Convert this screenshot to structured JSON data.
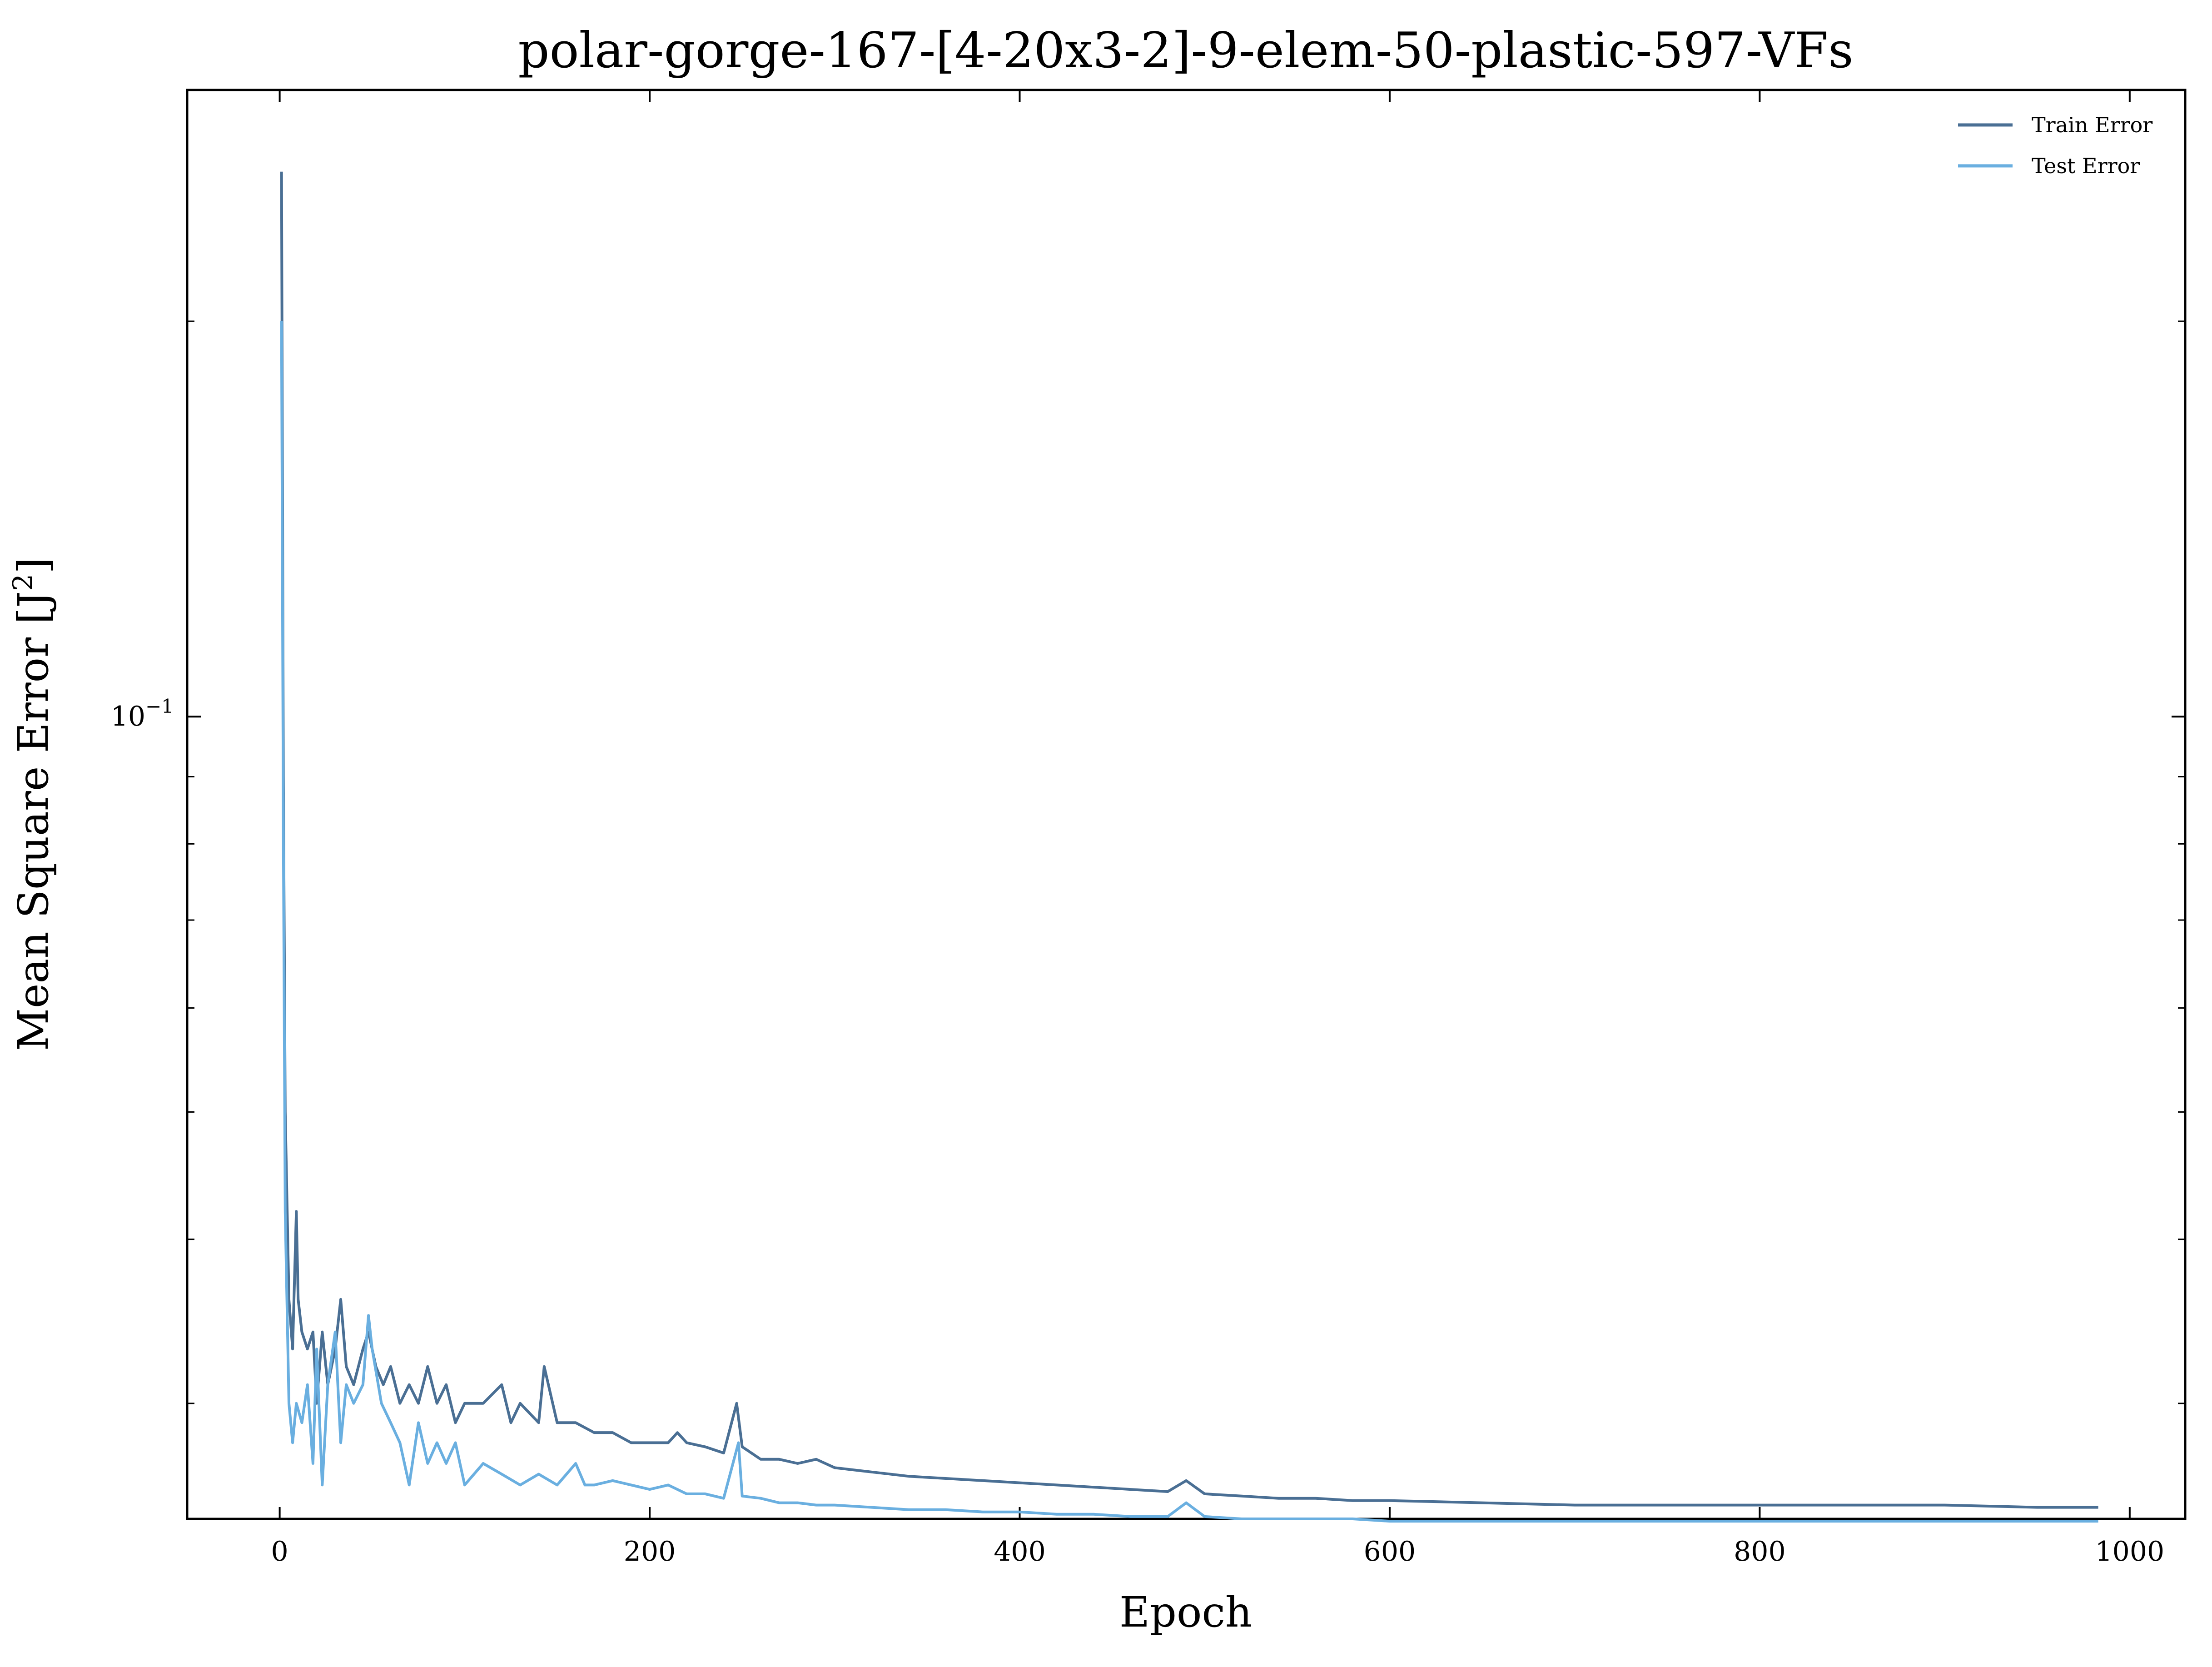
{
  "chart_data": {
    "type": "line",
    "title": "polar-gorge-167-[4-20x3-2]-9-elem-50-plastic-597-VFs",
    "xlabel": "Epoch",
    "ylabel_prefix": "Mean Square Error [J",
    "ylabel_sup": "2",
    "ylabel_suffix": "]",
    "yscale": "log",
    "xlim": [
      -50,
      1030
    ],
    "ylim": [
      0.0245,
      0.3
    ],
    "x_ticks": [
      0,
      200,
      400,
      600,
      800,
      1000
    ],
    "x_tick_labels": [
      "0",
      "200",
      "400",
      "600",
      "800",
      "1000"
    ],
    "y_major_tick_base": "10",
    "y_major_tick_exp": "−1",
    "y_major_tick_value": 0.1,
    "y_minor_ticks": [
      0.03,
      0.04,
      0.05,
      0.06,
      0.07,
      0.08,
      0.09,
      0.2,
      0.3
    ],
    "grid": false,
    "legend_position": "top-right",
    "series": [
      {
        "name": "Train Error",
        "color": "#4a6f94",
        "x": [
          1,
          2,
          3,
          5,
          7,
          9,
          10,
          12,
          15,
          18,
          20,
          23,
          26,
          30,
          33,
          36,
          40,
          45,
          48,
          52,
          56,
          60,
          65,
          70,
          75,
          80,
          85,
          90,
          95,
          100,
          110,
          120,
          125,
          130,
          140,
          143,
          150,
          160,
          170,
          180,
          190,
          200,
          210,
          215,
          220,
          230,
          240,
          247,
          250,
          255,
          260,
          270,
          280,
          290,
          300,
          320,
          340,
          360,
          380,
          400,
          420,
          440,
          460,
          480,
          490,
          500,
          520,
          540,
          560,
          580,
          600,
          650,
          700,
          750,
          800,
          850,
          900,
          950,
          983
        ],
        "values": [
          0.26,
          0.09,
          0.05,
          0.036,
          0.033,
          0.042,
          0.036,
          0.034,
          0.033,
          0.034,
          0.03,
          0.034,
          0.031,
          0.033,
          0.036,
          0.032,
          0.031,
          0.033,
          0.034,
          0.032,
          0.031,
          0.032,
          0.03,
          0.031,
          0.03,
          0.032,
          0.03,
          0.031,
          0.029,
          0.03,
          0.03,
          0.031,
          0.029,
          0.03,
          0.029,
          0.032,
          0.029,
          0.029,
          0.0285,
          0.0285,
          0.028,
          0.028,
          0.028,
          0.0285,
          0.028,
          0.0278,
          0.0275,
          0.03,
          0.0278,
          0.0275,
          0.0272,
          0.0272,
          0.027,
          0.0272,
          0.0268,
          0.0266,
          0.0264,
          0.0263,
          0.0262,
          0.0261,
          0.026,
          0.0259,
          0.0258,
          0.0257,
          0.0262,
          0.0256,
          0.0255,
          0.0254,
          0.0254,
          0.0253,
          0.0253,
          0.0252,
          0.0251,
          0.0251,
          0.0251,
          0.0251,
          0.0251,
          0.025,
          0.025
        ]
      },
      {
        "name": "Test Error",
        "color": "#6aafe0",
        "x": [
          1,
          2,
          3,
          5,
          7,
          9,
          12,
          15,
          18,
          20,
          23,
          26,
          30,
          33,
          36,
          40,
          45,
          48,
          50,
          55,
          60,
          65,
          70,
          75,
          80,
          85,
          90,
          95,
          100,
          110,
          120,
          130,
          140,
          150,
          160,
          165,
          170,
          180,
          190,
          200,
          210,
          220,
          230,
          240,
          248,
          250,
          260,
          270,
          280,
          290,
          300,
          320,
          340,
          360,
          380,
          400,
          420,
          440,
          460,
          480,
          490,
          500,
          520,
          540,
          560,
          580,
          600,
          650,
          700,
          750,
          800,
          850,
          900,
          950,
          983
        ],
        "values": [
          0.2,
          0.08,
          0.042,
          0.03,
          0.028,
          0.03,
          0.029,
          0.031,
          0.027,
          0.033,
          0.026,
          0.031,
          0.034,
          0.028,
          0.031,
          0.03,
          0.031,
          0.035,
          0.033,
          0.03,
          0.029,
          0.028,
          0.026,
          0.029,
          0.027,
          0.028,
          0.027,
          0.028,
          0.026,
          0.027,
          0.0265,
          0.026,
          0.0265,
          0.026,
          0.027,
          0.026,
          0.026,
          0.0262,
          0.026,
          0.0258,
          0.026,
          0.0256,
          0.0256,
          0.0254,
          0.028,
          0.0255,
          0.0254,
          0.0252,
          0.0252,
          0.0251,
          0.0251,
          0.025,
          0.0249,
          0.0249,
          0.0248,
          0.0248,
          0.0247,
          0.0247,
          0.0246,
          0.0246,
          0.0252,
          0.0246,
          0.0245,
          0.0245,
          0.0245,
          0.0245,
          0.0244,
          0.0244,
          0.0244,
          0.0244,
          0.0244,
          0.0244,
          0.0244,
          0.0244,
          0.0244
        ]
      }
    ]
  }
}
